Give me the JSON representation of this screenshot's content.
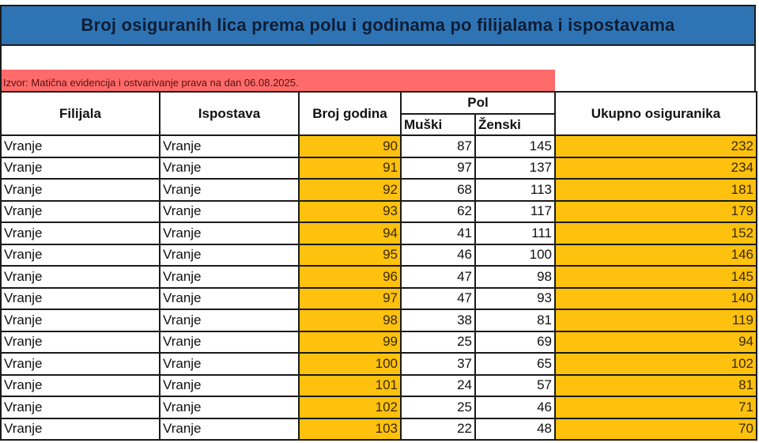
{
  "title": "Broj osiguranih lica prema polu i godinama po filijalama i ispostavama",
  "source": "Izvor: Matična evidencija i ostvarivanje prava na dan 06.08.2025.",
  "colors": {
    "title_bg": "#2e74b5",
    "source_bg": "#ff6b6b",
    "highlight": "#fdc10e"
  },
  "headers": {
    "filijala": "Filijala",
    "ispostava": "Ispostava",
    "broj_godina": "Broj godina",
    "pol": "Pol",
    "muski": "Muški",
    "zenski": "Ženski",
    "ukupno": "Ukupno osiguranika"
  },
  "rows": [
    {
      "filijala": "Vranje",
      "ispostava": "Vranje",
      "godina": "90",
      "muski": "87",
      "zenski": "145",
      "ukupno": "232"
    },
    {
      "filijala": "Vranje",
      "ispostava": "Vranje",
      "godina": "91",
      "muski": "97",
      "zenski": "137",
      "ukupno": "234"
    },
    {
      "filijala": "Vranje",
      "ispostava": "Vranje",
      "godina": "92",
      "muski": "68",
      "zenski": "113",
      "ukupno": "181"
    },
    {
      "filijala": "Vranje",
      "ispostava": "Vranje",
      "godina": "93",
      "muski": "62",
      "zenski": "117",
      "ukupno": "179"
    },
    {
      "filijala": "Vranje",
      "ispostava": "Vranje",
      "godina": "94",
      "muski": "41",
      "zenski": "111",
      "ukupno": "152"
    },
    {
      "filijala": "Vranje",
      "ispostava": "Vranje",
      "godina": "95",
      "muski": "46",
      "zenski": "100",
      "ukupno": "146"
    },
    {
      "filijala": "Vranje",
      "ispostava": "Vranje",
      "godina": "96",
      "muski": "47",
      "zenski": "98",
      "ukupno": "145"
    },
    {
      "filijala": "Vranje",
      "ispostava": "Vranje",
      "godina": "97",
      "muski": "47",
      "zenski": "93",
      "ukupno": "140"
    },
    {
      "filijala": "Vranje",
      "ispostava": "Vranje",
      "godina": "98",
      "muski": "38",
      "zenski": "81",
      "ukupno": "119"
    },
    {
      "filijala": "Vranje",
      "ispostava": "Vranje",
      "godina": "99",
      "muski": "25",
      "zenski": "69",
      "ukupno": "94"
    },
    {
      "filijala": "Vranje",
      "ispostava": "Vranje",
      "godina": "100",
      "muski": "37",
      "zenski": "65",
      "ukupno": "102"
    },
    {
      "filijala": "Vranje",
      "ispostava": "Vranje",
      "godina": "101",
      "muski": "24",
      "zenski": "57",
      "ukupno": "81"
    },
    {
      "filijala": "Vranje",
      "ispostava": "Vranje",
      "godina": "102",
      "muski": "25",
      "zenski": "46",
      "ukupno": "71"
    },
    {
      "filijala": "Vranje",
      "ispostava": "Vranje",
      "godina": "103",
      "muski": "22",
      "zenski": "48",
      "ukupno": "70"
    }
  ]
}
